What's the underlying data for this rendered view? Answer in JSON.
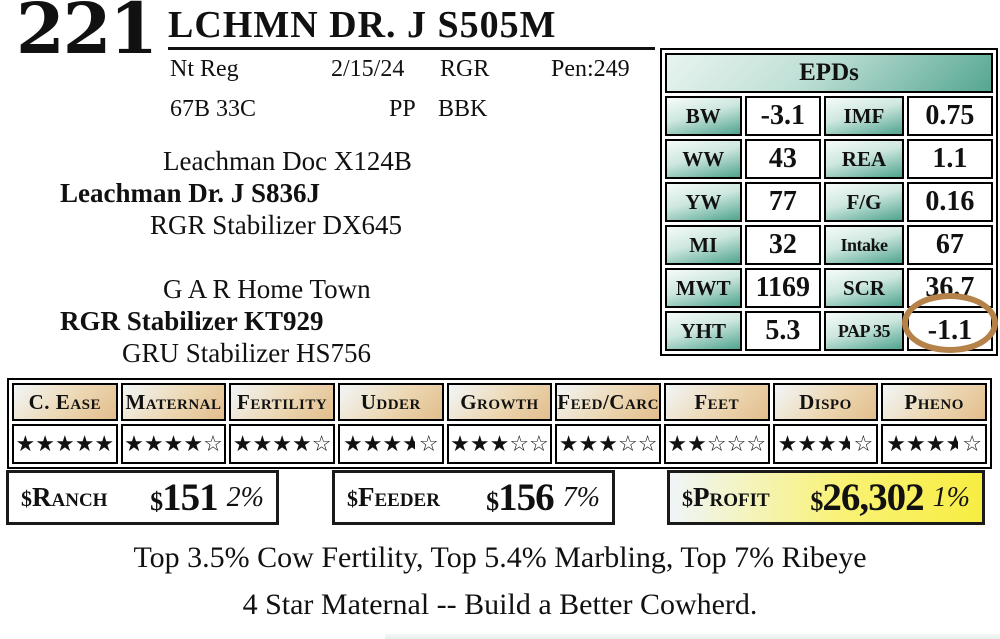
{
  "header": {
    "lot_number": "221",
    "animal_name": "LCHMN DR. J S505M",
    "reg": "Nt Reg",
    "birth_date": "2/15/24",
    "ranch_code": "RGR",
    "pen": "Pen:249",
    "tattoo": "67B 33C",
    "polled": "PP",
    "color_code": "BBK"
  },
  "pedigree": {
    "sire_sire": "Leachman Doc X124B",
    "sire": "Leachman Dr. J S836J",
    "sire_dam": "RGR Stabilizer DX645",
    "dam_sire": "G A R Home Town",
    "dam": "RGR Stabilizer KT929",
    "dam_dam": "GRU Stabilizer HS756"
  },
  "epds": {
    "title": "EPDs",
    "accent_color": "#4fa38e",
    "rows": [
      {
        "left_label": "BW",
        "left_value": "-3.1",
        "right_label": "IMF",
        "right_value": "0.75"
      },
      {
        "left_label": "WW",
        "left_value": "43",
        "right_label": "REA",
        "right_value": "1.1"
      },
      {
        "left_label": "YW",
        "left_value": "77",
        "right_label": "F/G",
        "right_value": "0.16"
      },
      {
        "left_label": "MI",
        "left_value": "32",
        "right_label": "Intake",
        "right_value": "67"
      },
      {
        "left_label": "MWT",
        "left_value": "1169",
        "right_label": "SCR",
        "right_value": "36.7"
      },
      {
        "left_label": "YHT",
        "left_value": "5.3",
        "right_label": "PAP 35",
        "right_value": "-1.1",
        "right_value_circled": true
      }
    ],
    "circle_color": "#b5824a"
  },
  "ratings": {
    "accent_color": "#e2bd8c",
    "max_stars": 5,
    "columns": [
      {
        "label": "C. Ease",
        "stars": 5
      },
      {
        "label": "Maternal",
        "stars": 4
      },
      {
        "label": "Fertility",
        "stars": 4
      },
      {
        "label": "Udder",
        "stars": 3.5
      },
      {
        "label": "Growth",
        "stars": 3
      },
      {
        "label": "Feed/Carc",
        "stars": 3
      },
      {
        "label": "Feet",
        "stars": 2
      },
      {
        "label": "Dispo",
        "stars": 3.5
      },
      {
        "label": "Pheno",
        "stars": 3.5
      }
    ]
  },
  "indexes": [
    {
      "name": "Ranch",
      "prefix": "$",
      "currency": "$",
      "amount": "151",
      "percentile": "2%",
      "highlight": false
    },
    {
      "name": "Feeder",
      "prefix": "$",
      "currency": "$",
      "amount": "156",
      "percentile": "7%",
      "highlight": false
    },
    {
      "name": "Profit",
      "prefix": "$",
      "currency": "$",
      "amount": "26,302",
      "percentile": "1%",
      "highlight": true,
      "highlight_color": "#f7ed42"
    }
  ],
  "notes": {
    "line1": "Top 3.5% Cow Fertility, Top 5.4% Marbling, Top 7% Ribeye",
    "line2": "4 Star Maternal -- Build a Better Cowherd."
  }
}
